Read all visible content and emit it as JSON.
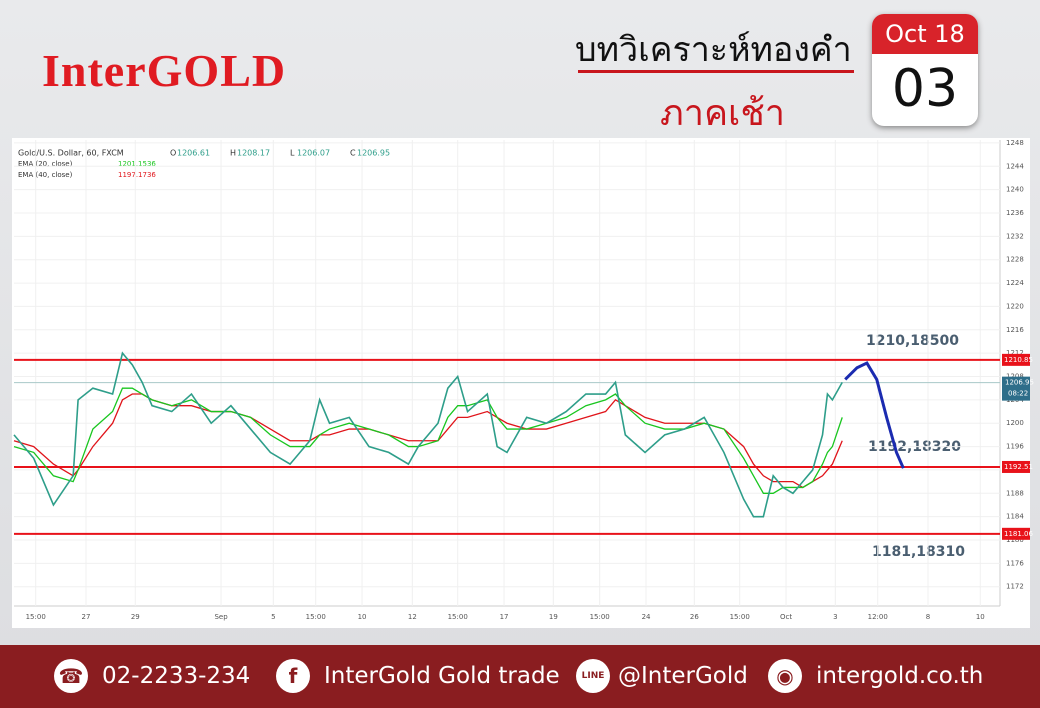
{
  "header": {
    "brand": "InterGOLD",
    "title": "บทวิเคราะห์ทองคำ",
    "subtitle": "ภาคเช้า",
    "calendar_month": "Oct 18",
    "calendar_day": "03"
  },
  "chart_data": {
    "type": "line",
    "legend": {
      "ohlc": [
        {
          "key": "O",
          "value": "1206.61"
        },
        {
          "key": "H",
          "value": "1208.17"
        },
        {
          "key": "L",
          "value": "1206.07"
        },
        {
          "key": "C",
          "value": "1206.95"
        }
      ],
      "ema_values": [
        "1201.1536",
        "1197.1736"
      ]
    },
    "x": [
      0,
      2,
      4,
      6,
      6.5,
      8,
      10,
      11,
      12,
      13,
      14,
      16,
      18,
      20,
      22,
      24,
      26,
      28,
      30,
      31,
      32,
      34,
      36,
      38,
      40,
      41,
      43,
      44,
      45,
      46,
      48,
      49,
      50,
      52,
      54,
      56,
      58,
      60,
      61,
      62,
      64,
      66,
      68,
      70,
      72,
      74,
      75,
      76,
      77,
      78,
      79,
      80,
      81,
      82,
      82.5,
      83,
      84
    ],
    "series": [
      {
        "name": "Gold/U.S. Dollar, 60, FXCM",
        "color": "#2e9e8a",
        "values": [
          1198,
          1194,
          1186,
          1191,
          1204,
          1206,
          1205,
          1212,
          1210,
          1207,
          1203,
          1202,
          1205,
          1200,
          1203,
          1199,
          1195,
          1193,
          1197,
          1204,
          1200,
          1201,
          1196,
          1195,
          1193,
          1196,
          1200,
          1206,
          1208,
          1202,
          1205,
          1196,
          1195,
          1201,
          1200,
          1202,
          1205,
          1205,
          1207,
          1198,
          1195,
          1198,
          1199,
          1201,
          1195,
          1187,
          1184,
          1184,
          1191,
          1189,
          1188,
          1190,
          1192,
          1198,
          1205,
          1204,
          1207
        ]
      },
      {
        "name": "EMA (20, close)",
        "color": "#19c61f",
        "values": [
          1196,
          1195,
          1191,
          1190,
          1192,
          1199,
          1202,
          1206,
          1206,
          1205,
          1204,
          1203,
          1204,
          1202,
          1202,
          1201,
          1198,
          1196,
          1196,
          1198,
          1199,
          1200,
          1199,
          1198,
          1196,
          1196,
          1197,
          1201,
          1203,
          1203,
          1204,
          1201,
          1199,
          1199,
          1200,
          1201,
          1203,
          1204,
          1205,
          1203,
          1200,
          1199,
          1199,
          1200,
          1199,
          1194,
          1191,
          1188,
          1188,
          1189,
          1189,
          1189,
          1190,
          1193,
          1195,
          1196,
          1201
        ]
      },
      {
        "name": "EMA (40, close)",
        "color": "#e0141a",
        "values": [
          1197,
          1196,
          1193,
          1191,
          1192,
          1196,
          1200,
          1204,
          1205,
          1205,
          1204,
          1203,
          1203,
          1202,
          1202,
          1201,
          1199,
          1197,
          1197,
          1198,
          1198,
          1199,
          1199,
          1198,
          1197,
          1197,
          1197,
          1199,
          1201,
          1201,
          1202,
          1201,
          1200,
          1199,
          1199,
          1200,
          1201,
          1202,
          1204,
          1203,
          1201,
          1200,
          1200,
          1200,
          1199,
          1196,
          1193,
          1191,
          1190,
          1190,
          1190,
          1189,
          1190,
          1191,
          1192,
          1193,
          1197
        ]
      }
    ],
    "projection": {
      "color": "#1b2bb0",
      "x": [
        84.3,
        85.5,
        86.5,
        87.5,
        88.5,
        89.5,
        90.2
      ],
      "values": [
        1207.5,
        1209.5,
        1210.3,
        1207.5,
        1201,
        1195,
        1192.3
      ]
    },
    "levels": [
      {
        "value": 1210.85,
        "label": "1210.85"
      },
      {
        "value": 1192.51,
        "label": "1192.51"
      },
      {
        "value": 1181.06,
        "label": "1181.06"
      }
    ],
    "level_color": "#e8121a",
    "price_tag": {
      "value": 1206.95,
      "label": "1206.95",
      "time": "08:22"
    },
    "annotations": [
      "1210,18500",
      "1192,18320",
      "1181,18310"
    ],
    "xlim": [
      0,
      100
    ],
    "ylim": [
      1168.7,
      1248.5
    ],
    "yticks": [
      1172,
      1176,
      1180,
      1184,
      1188,
      1192,
      1196,
      1200,
      1204,
      1208,
      1212,
      1216,
      1220,
      1224,
      1228,
      1232,
      1236,
      1240,
      1244,
      1248
    ],
    "xticks": [
      {
        "value": 2.2,
        "label": "15:00"
      },
      {
        "value": 7.3,
        "label": "27"
      },
      {
        "value": 12.3,
        "label": "29"
      },
      {
        "value": 21,
        "label": "Sep"
      },
      {
        "value": 26.3,
        "label": "5"
      },
      {
        "value": 30.6,
        "label": "15:00"
      },
      {
        "value": 35.3,
        "label": "10"
      },
      {
        "value": 40.4,
        "label": "12"
      },
      {
        "value": 45,
        "label": "15:00"
      },
      {
        "value": 49.7,
        "label": "17"
      },
      {
        "value": 54.7,
        "label": "19"
      },
      {
        "value": 59.4,
        "label": "15:00"
      },
      {
        "value": 64.1,
        "label": "24"
      },
      {
        "value": 69,
        "label": "26"
      },
      {
        "value": 73.6,
        "label": "15:00"
      },
      {
        "value": 78.3,
        "label": "Oct"
      },
      {
        "value": 83.3,
        "label": "3"
      },
      {
        "value": 87.6,
        "label": "12:00"
      },
      {
        "value": 92.7,
        "label": "8"
      },
      {
        "value": 98,
        "label": "10"
      }
    ]
  },
  "footer": {
    "phone": "02-2233-234",
    "facebook": "InterGold Gold trade",
    "line": "@InterGold",
    "website": "intergold.co.th"
  }
}
